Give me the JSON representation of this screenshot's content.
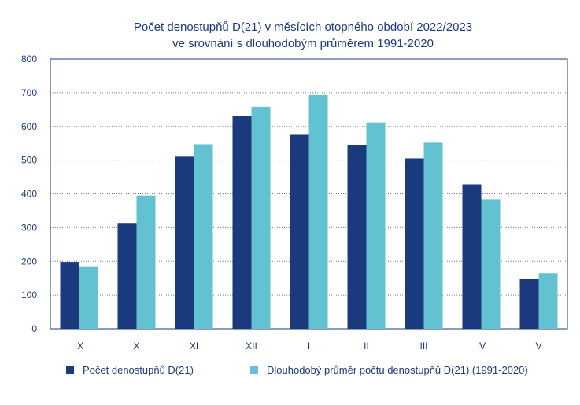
{
  "chart_data": {
    "type": "bar",
    "title_line1": "Počet denostupňů D(21) v měsících otopného období 2022/2023",
    "title_line2": "ve srovnání s dlouhodobým průměrem 1991-2020",
    "categories": [
      "IX",
      "X",
      "XI",
      "XII",
      "I",
      "II",
      "III",
      "IV",
      "V"
    ],
    "series": [
      {
        "name": "Počet denostupňů D(21)",
        "color": "#1b3a7e",
        "values": [
          198,
          312,
          510,
          630,
          575,
          545,
          505,
          428,
          147
        ]
      },
      {
        "name": "Dlouhodobý průměr počtu denostupňů D(21) (1991-2020)",
        "color": "#63c2d2",
        "values": [
          185,
          395,
          547,
          658,
          693,
          612,
          552,
          384,
          165
        ]
      }
    ],
    "ylim": [
      0,
      800
    ],
    "yticks": [
      0,
      100,
      200,
      300,
      400,
      500,
      600,
      700,
      800
    ],
    "grid": "dotted horizontal",
    "legend_position": "bottom"
  }
}
